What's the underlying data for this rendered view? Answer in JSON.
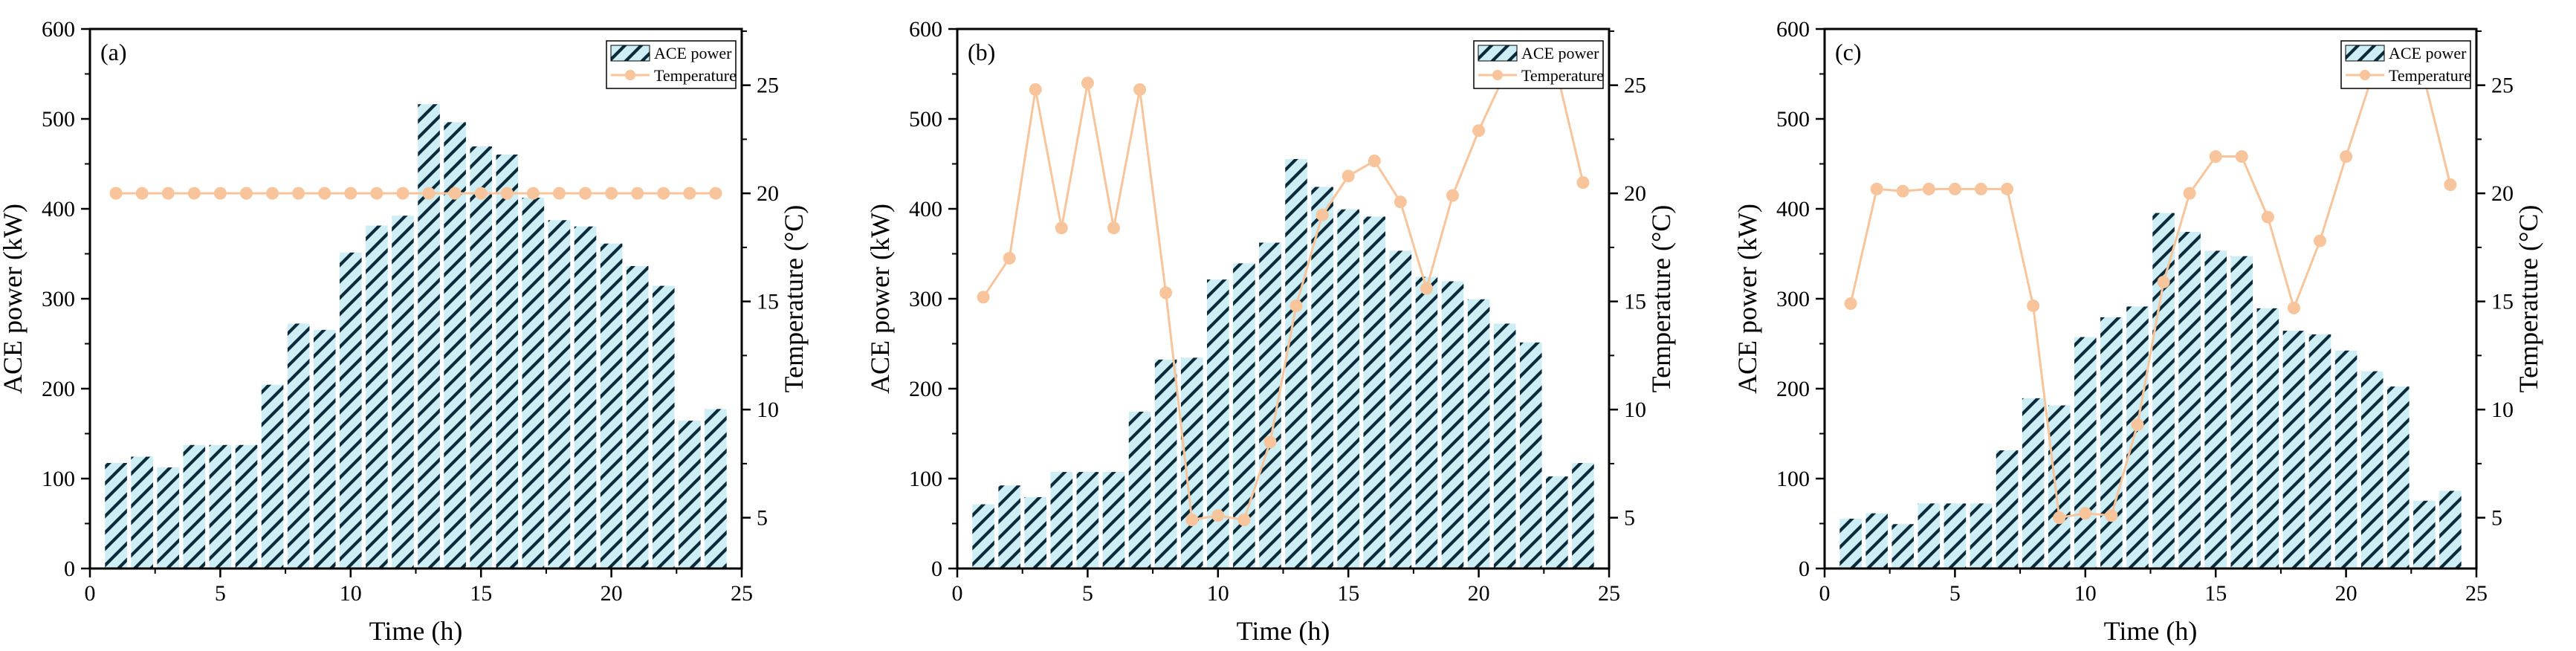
{
  "chart_data": [
    {
      "panel_label": "(a)",
      "type": "bar+line",
      "xlabel": "Time (h)",
      "ylabel": "ACE power (kW)",
      "y2label": "Temperature (°C)",
      "xlim": [
        0,
        25
      ],
      "ylim": [
        0,
        600
      ],
      "y2lim": [
        2.65,
        27.6
      ],
      "xticks": [
        0,
        5,
        10,
        15,
        20,
        25
      ],
      "yticks": [
        0,
        100,
        200,
        300,
        400,
        500,
        600
      ],
      "y2ticks": [
        5,
        10,
        15,
        20,
        25
      ],
      "legend": {
        "position": "top-right",
        "bar_label": "ACE power",
        "line_label": "Temperature"
      },
      "x": [
        1,
        2,
        3,
        4,
        5,
        6,
        7,
        8,
        9,
        10,
        11,
        12,
        13,
        14,
        15,
        16,
        17,
        18,
        19,
        20,
        21,
        22,
        23,
        24
      ],
      "series": [
        {
          "name": "ACE power",
          "kind": "bar",
          "axis": "left",
          "values": [
            118,
            125,
            113,
            138,
            138,
            138,
            205,
            273,
            266,
            352,
            382,
            393,
            517,
            497,
            470,
            461,
            413,
            388,
            381,
            362,
            337,
            315,
            165,
            178
          ]
        },
        {
          "name": "Temperature",
          "kind": "line",
          "axis": "right",
          "values": [
            20,
            20,
            20,
            20,
            20,
            20,
            20,
            20,
            20,
            20,
            20,
            20,
            20,
            20,
            20,
            20,
            20,
            20,
            20,
            20,
            20,
            20,
            20,
            20
          ]
        }
      ]
    },
    {
      "panel_label": "(b)",
      "type": "bar+line",
      "xlabel": "Time (h)",
      "ylabel": "ACE power (kW)",
      "y2label": "Temperature (°C)",
      "xlim": [
        0,
        25
      ],
      "ylim": [
        0,
        600
      ],
      "y2lim": [
        2.65,
        27.6
      ],
      "xticks": [
        0,
        5,
        10,
        15,
        20,
        25
      ],
      "yticks": [
        0,
        100,
        200,
        300,
        400,
        500,
        600
      ],
      "y2ticks": [
        5,
        10,
        15,
        20,
        25
      ],
      "legend": {
        "position": "top-right",
        "bar_label": "ACE power",
        "line_label": "Temperature"
      },
      "x": [
        1,
        2,
        3,
        4,
        5,
        6,
        7,
        8,
        9,
        10,
        11,
        12,
        13,
        14,
        15,
        16,
        17,
        18,
        19,
        20,
        21,
        22,
        23,
        24
      ],
      "series": [
        {
          "name": "ACE power",
          "kind": "bar",
          "axis": "left",
          "values": [
            72,
            93,
            80,
            108,
            108,
            108,
            175,
            233,
            235,
            322,
            340,
            363,
            456,
            425,
            400,
            392,
            354,
            325,
            320,
            300,
            273,
            252,
            103,
            118
          ]
        },
        {
          "name": "Temperature",
          "kind": "line",
          "axis": "right",
          "values": [
            15.2,
            17.0,
            24.8,
            18.4,
            25.1,
            18.4,
            24.8,
            15.4,
            4.9,
            5.1,
            4.9,
            8.5,
            14.8,
            19.0,
            20.8,
            21.5,
            19.6,
            15.6,
            19.9,
            22.9,
            25.5,
            26.1,
            25.6,
            20.5
          ]
        }
      ]
    },
    {
      "panel_label": "(c)",
      "type": "bar+line",
      "xlabel": "Time (h)",
      "ylabel": "ACE power (kW)",
      "y2label": "Temperature (°C)",
      "xlim": [
        0,
        25
      ],
      "ylim": [
        0,
        600
      ],
      "y2lim": [
        2.65,
        27.6
      ],
      "xticks": [
        0,
        5,
        10,
        15,
        20,
        25
      ],
      "yticks": [
        0,
        100,
        200,
        300,
        400,
        500,
        600
      ],
      "y2ticks": [
        5,
        10,
        15,
        20,
        25
      ],
      "legend": {
        "position": "top-right",
        "bar_label": "ACE power",
        "line_label": "Temperature"
      },
      "x": [
        1,
        2,
        3,
        4,
        5,
        6,
        7,
        8,
        9,
        10,
        11,
        12,
        13,
        14,
        15,
        16,
        17,
        18,
        19,
        20,
        21,
        22,
        23,
        24
      ],
      "series": [
        {
          "name": "ACE power",
          "kind": "bar",
          "axis": "left",
          "values": [
            56,
            62,
            50,
            73,
            73,
            73,
            132,
            190,
            182,
            258,
            280,
            292,
            396,
            375,
            354,
            348,
            290,
            265,
            261,
            243,
            220,
            203,
            76,
            87
          ]
        },
        {
          "name": "Temperature",
          "kind": "line",
          "axis": "right",
          "values": [
            14.9,
            20.2,
            20.1,
            20.2,
            20.2,
            20.2,
            20.2,
            14.8,
            5.0,
            5.2,
            5.1,
            9.3,
            15.9,
            20.0,
            21.7,
            21.7,
            18.9,
            14.7,
            17.8,
            21.7,
            25.4,
            26.2,
            25.3,
            20.4
          ]
        }
      ]
    }
  ],
  "style": {
    "bar_fill": "#cdeef4",
    "bar_hatch": "#0d2a3a",
    "line_color": "#f8c49b"
  }
}
